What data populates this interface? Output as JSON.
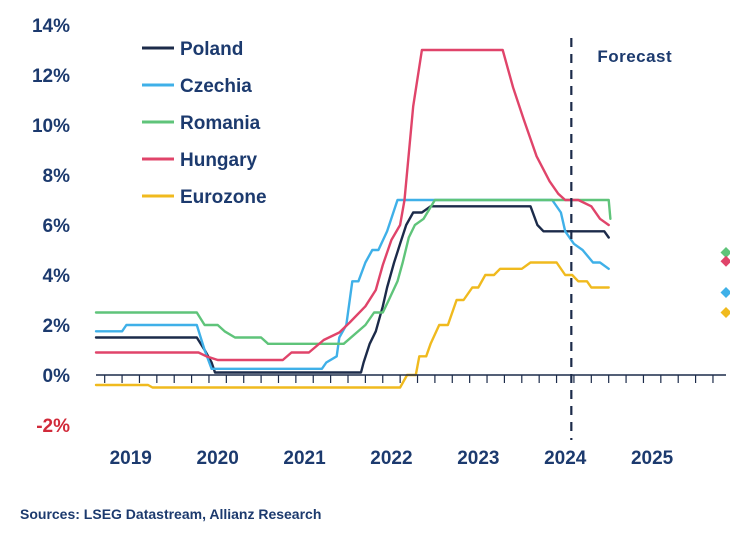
{
  "chart_data": {
    "type": "line",
    "title": "",
    "xlabel": "",
    "ylabel": "",
    "ylim": [
      -2,
      14
    ],
    "yticks": [
      {
        "value": -2,
        "label": "-2%"
      },
      {
        "value": 0,
        "label": "0%"
      },
      {
        "value": 2,
        "label": "2%"
      },
      {
        "value": 4,
        "label": "4%"
      },
      {
        "value": 6,
        "label": "6%"
      },
      {
        "value": 8,
        "label": "8%"
      },
      {
        "value": 10,
        "label": "10%"
      },
      {
        "value": 12,
        "label": "12%"
      },
      {
        "value": 14,
        "label": "14%"
      }
    ],
    "xlim": [
      2018.7,
      2025.95
    ],
    "xticks": [
      {
        "value": 2019.1,
        "label": "2019"
      },
      {
        "value": 2020.1,
        "label": "2020"
      },
      {
        "value": 2021.1,
        "label": "2021"
      },
      {
        "value": 2022.1,
        "label": "2022"
      },
      {
        "value": 2023.1,
        "label": "2023"
      },
      {
        "value": 2024.1,
        "label": "2024"
      },
      {
        "value": 2025.1,
        "label": "2025"
      }
    ],
    "minor_tick_step": 0.2,
    "forecast": {
      "x": 2024.17,
      "label": "Forecast"
    },
    "legend_position": "top-left",
    "series": [
      {
        "name": "Poland",
        "color": "#1c2b4a",
        "points": [
          [
            2018.7,
            1.5
          ],
          [
            2019.86,
            1.5
          ],
          [
            2019.95,
            1.0
          ],
          [
            2020.03,
            0.5
          ],
          [
            2020.07,
            0.1
          ],
          [
            2021.35,
            0.1
          ],
          [
            2021.75,
            0.1
          ],
          [
            2021.78,
            0.5
          ],
          [
            2021.85,
            1.25
          ],
          [
            2021.92,
            1.75
          ],
          [
            2022.0,
            2.75
          ],
          [
            2022.05,
            3.5
          ],
          [
            2022.13,
            4.5
          ],
          [
            2022.2,
            5.25
          ],
          [
            2022.27,
            6.0
          ],
          [
            2022.35,
            6.5
          ],
          [
            2022.45,
            6.5
          ],
          [
            2022.55,
            6.75
          ],
          [
            2023.7,
            6.75
          ],
          [
            2023.78,
            6.0
          ],
          [
            2023.85,
            5.75
          ],
          [
            2024.55,
            5.75
          ],
          [
            2024.6,
            5.5
          ]
        ],
        "markers": []
      },
      {
        "name": "Czechia",
        "color": "#3fb0e8",
        "points": [
          [
            2018.7,
            1.75
          ],
          [
            2019.0,
            1.75
          ],
          [
            2019.05,
            2.0
          ],
          [
            2019.86,
            2.0
          ],
          [
            2019.95,
            1.0
          ],
          [
            2020.03,
            0.25
          ],
          [
            2021.3,
            0.25
          ],
          [
            2021.35,
            0.5
          ],
          [
            2021.47,
            0.75
          ],
          [
            2021.5,
            1.5
          ],
          [
            2021.58,
            2.0
          ],
          [
            2021.65,
            3.75
          ],
          [
            2021.72,
            3.75
          ],
          [
            2021.8,
            4.5
          ],
          [
            2021.88,
            5.0
          ],
          [
            2021.95,
            5.0
          ],
          [
            2022.05,
            5.75
          ],
          [
            2022.17,
            7.0
          ],
          [
            2023.95,
            7.0
          ],
          [
            2024.05,
            6.5
          ],
          [
            2024.1,
            5.75
          ],
          [
            2024.2,
            5.25
          ],
          [
            2024.3,
            5.0
          ],
          [
            2024.42,
            4.5
          ],
          [
            2024.5,
            4.5
          ],
          [
            2024.6,
            4.25
          ]
        ],
        "markers": [
          [
            2025.95,
            3.3
          ]
        ]
      },
      {
        "name": "Romania",
        "color": "#5fc47a",
        "points": [
          [
            2018.7,
            2.5
          ],
          [
            2019.86,
            2.5
          ],
          [
            2019.95,
            2.0
          ],
          [
            2020.1,
            2.0
          ],
          [
            2020.18,
            1.75
          ],
          [
            2020.3,
            1.5
          ],
          [
            2020.6,
            1.5
          ],
          [
            2020.68,
            1.25
          ],
          [
            2021.55,
            1.25
          ],
          [
            2021.8,
            2.0
          ],
          [
            2021.9,
            2.5
          ],
          [
            2022.0,
            2.5
          ],
          [
            2022.07,
            3.0
          ],
          [
            2022.17,
            3.75
          ],
          [
            2022.23,
            4.5
          ],
          [
            2022.3,
            5.5
          ],
          [
            2022.37,
            6.0
          ],
          [
            2022.47,
            6.25
          ],
          [
            2022.6,
            7.0
          ],
          [
            2024.6,
            7.0
          ],
          [
            2024.62,
            6.25
          ]
        ],
        "markers": [
          [
            2025.95,
            4.9
          ]
        ]
      },
      {
        "name": "Hungary",
        "color": "#e0446a",
        "points": [
          [
            2018.7,
            0.9
          ],
          [
            2019.88,
            0.9
          ],
          [
            2019.97,
            0.75
          ],
          [
            2020.1,
            0.6
          ],
          [
            2020.85,
            0.6
          ],
          [
            2020.95,
            0.9
          ],
          [
            2021.15,
            0.9
          ],
          [
            2021.32,
            1.4
          ],
          [
            2021.5,
            1.7
          ],
          [
            2021.62,
            2.1
          ],
          [
            2021.8,
            2.75
          ],
          [
            2021.92,
            3.4
          ],
          [
            2022.0,
            4.4
          ],
          [
            2022.1,
            5.4
          ],
          [
            2022.2,
            6.0
          ],
          [
            2022.25,
            7.0
          ],
          [
            2022.35,
            10.75
          ],
          [
            2022.45,
            13.0
          ],
          [
            2023.38,
            13.0
          ],
          [
            2023.5,
            11.5
          ],
          [
            2023.62,
            10.25
          ],
          [
            2023.77,
            8.75
          ],
          [
            2023.92,
            7.75
          ],
          [
            2024.02,
            7.25
          ],
          [
            2024.1,
            7.0
          ],
          [
            2024.25,
            7.0
          ],
          [
            2024.4,
            6.75
          ],
          [
            2024.5,
            6.25
          ],
          [
            2024.6,
            6.0
          ]
        ],
        "markers": [
          [
            2025.95,
            4.55
          ]
        ]
      },
      {
        "name": "Eurozone",
        "color": "#f0ba1e",
        "points": [
          [
            2018.7,
            -0.4
          ],
          [
            2019.3,
            -0.4
          ],
          [
            2019.35,
            -0.5
          ],
          [
            2022.2,
            -0.5
          ],
          [
            2022.28,
            0.0
          ],
          [
            2022.38,
            0.0
          ],
          [
            2022.42,
            0.75
          ],
          [
            2022.5,
            0.75
          ],
          [
            2022.55,
            1.25
          ],
          [
            2022.65,
            2.0
          ],
          [
            2022.75,
            2.0
          ],
          [
            2022.85,
            3.0
          ],
          [
            2022.93,
            3.0
          ],
          [
            2023.03,
            3.5
          ],
          [
            2023.1,
            3.5
          ],
          [
            2023.18,
            4.0
          ],
          [
            2023.28,
            4.0
          ],
          [
            2023.35,
            4.25
          ],
          [
            2023.6,
            4.25
          ],
          [
            2023.7,
            4.5
          ],
          [
            2024.0,
            4.5
          ],
          [
            2024.1,
            4.0
          ],
          [
            2024.18,
            4.0
          ],
          [
            2024.25,
            3.75
          ],
          [
            2024.35,
            3.75
          ],
          [
            2024.4,
            3.5
          ],
          [
            2024.6,
            3.5
          ]
        ],
        "markers": [
          [
            2025.95,
            2.5
          ]
        ]
      }
    ]
  },
  "source": "Sources: LSEG Datastream, Allianz Research"
}
